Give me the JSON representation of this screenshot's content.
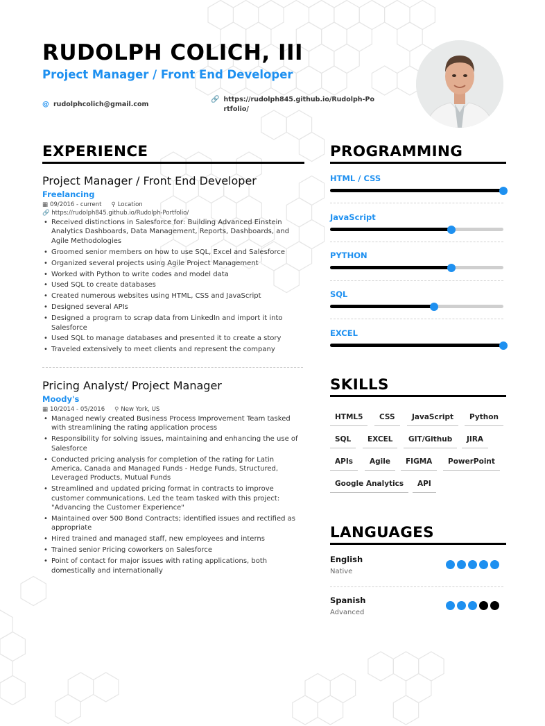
{
  "header": {
    "name": "RUDOLPH COLICH, III",
    "title": "Project Manager / Front End Developer",
    "email": "rudolphcolich@gmail.com",
    "website": "https://rudolph845.github.io/Rudolph-Portfolio/",
    "email_icon": "at-icon",
    "link_icon": "link-icon"
  },
  "colors": {
    "accent": "#1e90f0",
    "text": "#222222",
    "rule": "#000000"
  },
  "experience": {
    "heading": "EXPERIENCE",
    "jobs": [
      {
        "role": "Project Manager / Front End Developer",
        "company": "Freelancing",
        "dates": "09/2016 - current",
        "location": "Location",
        "link": "https://rudolph845.github.io/Rudolph-Portfolio/",
        "bullets": [
          "Received distinctions in Salesforce for: Building Advanced Einstein Analytics Dashboards, Data Management, Reports, Dashboards, and Agile Methodologies",
          "Groomed senior members on how to use SQL, Excel and Salesforce",
          "Organized several projects using Agile Project Management",
          "Worked with Python to write codes and model data",
          "Used SQL to create databases",
          "Created numerous websites using HTML, CSS and JavaScript",
          "Designed several APIs",
          "Designed a program to scrap data from LinkedIn and import it into Salesforce",
          "Used SQL to manage databases and presented it to create a story",
          "Traveled extensively to meet clients and represent the company"
        ]
      },
      {
        "role": "Pricing Analyst/ Project Manager",
        "company": "Moody's",
        "dates": "10/2014 - 05/2016",
        "location": "New York, US",
        "bullets": [
          "Managed newly created Business Process Improvement Team tasked with streamlining the rating application process",
          "Responsibility for solving issues, maintaining and enhancing the use of Salesforce",
          "Conducted pricing analysis for completion of the rating for Latin America, Canada and Managed Funds - Hedge Funds, Structured, Leveraged Products, Mutual Funds",
          "Streamlined and updated pricing format in contracts to improve customer communications.  Led the team tasked with this project: \"Advancing the Customer Experience\"",
          "Maintained over 500 Bond Contracts; identified issues and rectified as appropriate",
          "Hired trained and managed staff, new employees and interns",
          "Trained senior Pricing coworkers on Salesforce",
          "Point of contact for major issues with rating applications, both domestically and internationally"
        ]
      }
    ]
  },
  "programming": {
    "heading": "PROGRAMMING",
    "items": [
      {
        "label": "HTML / CSS",
        "level": 1.0
      },
      {
        "label": "JavaScript",
        "level": 0.7
      },
      {
        "label": "PYTHON",
        "level": 0.7
      },
      {
        "label": "SQL",
        "level": 0.6
      },
      {
        "label": "EXCEL",
        "level": 1.0
      }
    ]
  },
  "skills": {
    "heading": "SKILLS",
    "rows": [
      [
        "HTML5",
        "CSS",
        "JavaScript",
        "Python"
      ],
      [
        "SQL",
        "EXCEL",
        "GIT/Github",
        "JIRA"
      ],
      [
        "APIs",
        "Agile",
        "FIGMA",
        "PowerPoint"
      ],
      [
        "Google Analytics",
        "API"
      ]
    ]
  },
  "languages": {
    "heading": "LANGUAGES",
    "items": [
      {
        "name": "English",
        "level": "Native",
        "rating": 5,
        "max": 5
      },
      {
        "name": "Spanish",
        "level": "Advanced",
        "rating": 3,
        "max": 5
      }
    ]
  }
}
